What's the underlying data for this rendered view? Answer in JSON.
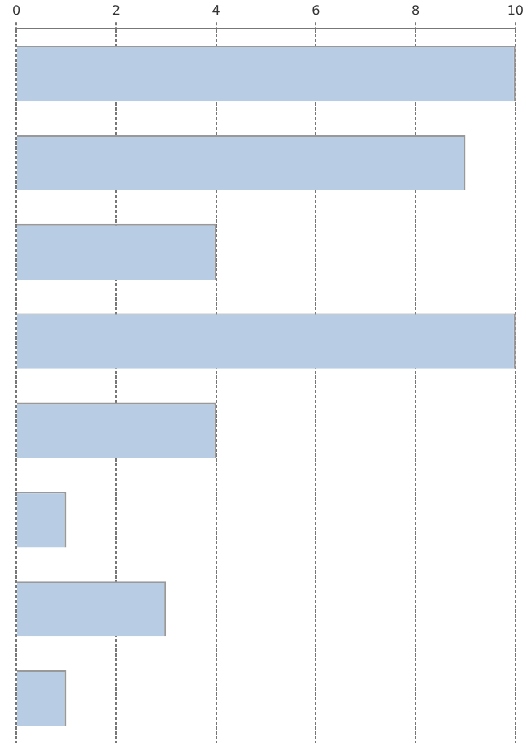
{
  "chart_data": {
    "type": "bar",
    "orientation": "horizontal",
    "categories": [
      null,
      null,
      null,
      null,
      null,
      null,
      null,
      null
    ],
    "values": [
      10,
      9,
      4,
      10,
      4,
      1,
      3,
      1
    ],
    "color": "#b8cce4",
    "xlim": [
      0,
      10
    ],
    "xticks": [
      0,
      2,
      4,
      6,
      8,
      10
    ],
    "grid": "x",
    "legend": false
  }
}
